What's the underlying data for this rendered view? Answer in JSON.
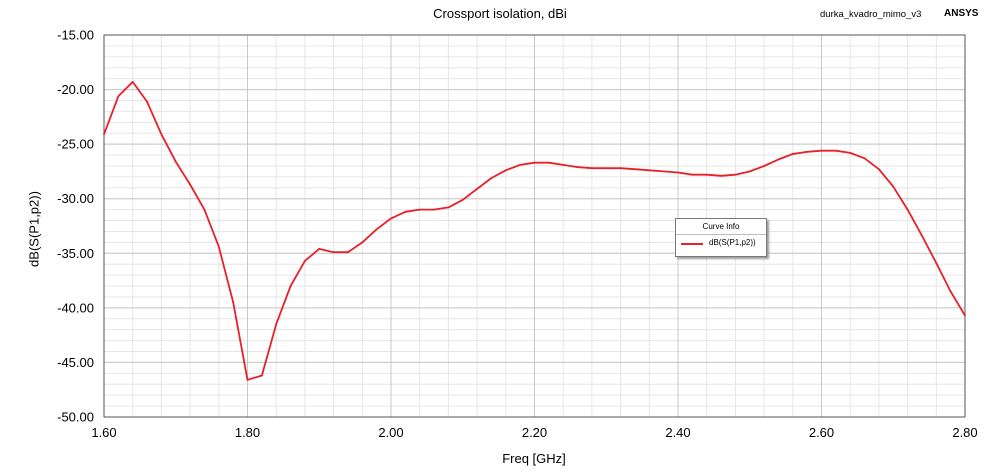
{
  "header": {
    "project_name": "durka_kvadro_mimo_v3",
    "brand": "ANSYS"
  },
  "legend": {
    "title": "Curve Info"
  },
  "chart_data": {
    "type": "line",
    "title": "Crossport isolation, dBi",
    "xlabel": "Freq [GHz]",
    "ylabel": "dB(S(P1,p2))",
    "xlim": [
      1.6,
      2.8
    ],
    "ylim": [
      -50,
      -15
    ],
    "x_ticks": [
      "1.60",
      "1.80",
      "2.00",
      "2.20",
      "2.40",
      "2.60",
      "2.80"
    ],
    "y_ticks": [
      "-15.00",
      "-20.00",
      "-25.00",
      "-30.00",
      "-35.00",
      "-40.00",
      "-45.00",
      "-50.00"
    ],
    "grid": true,
    "legend_position": "center-right",
    "colors": {
      "series": "#e8202a",
      "grid_major": "#c8c8c8",
      "grid_minor": "#e6e6e6"
    },
    "series": [
      {
        "name": "dB(S(P1,p2))",
        "x": [
          1.6,
          1.62,
          1.64,
          1.66,
          1.68,
          1.7,
          1.72,
          1.74,
          1.76,
          1.78,
          1.8,
          1.82,
          1.84,
          1.86,
          1.88,
          1.9,
          1.92,
          1.94,
          1.96,
          1.98,
          2.0,
          2.02,
          2.04,
          2.06,
          2.08,
          2.1,
          2.12,
          2.14,
          2.16,
          2.18,
          2.2,
          2.22,
          2.24,
          2.26,
          2.28,
          2.3,
          2.32,
          2.34,
          2.36,
          2.38,
          2.4,
          2.42,
          2.44,
          2.46,
          2.48,
          2.5,
          2.52,
          2.54,
          2.56,
          2.58,
          2.6,
          2.62,
          2.64,
          2.66,
          2.68,
          2.7,
          2.72,
          2.74,
          2.76,
          2.78,
          2.8
        ],
        "values": [
          -24.1,
          -20.6,
          -19.3,
          -21.1,
          -24.1,
          -26.6,
          -28.7,
          -31.0,
          -34.4,
          -39.5,
          -46.6,
          -46.2,
          -41.5,
          -38.0,
          -35.7,
          -34.6,
          -34.9,
          -34.9,
          -34.0,
          -32.8,
          -31.8,
          -31.2,
          -31.0,
          -31.0,
          -30.8,
          -30.1,
          -29.1,
          -28.1,
          -27.4,
          -26.9,
          -26.7,
          -26.7,
          -26.9,
          -27.1,
          -27.2,
          -27.2,
          -27.2,
          -27.3,
          -27.4,
          -27.5,
          -27.6,
          -27.8,
          -27.8,
          -27.9,
          -27.8,
          -27.5,
          -27.0,
          -26.4,
          -25.9,
          -25.7,
          -25.6,
          -25.6,
          -25.8,
          -26.3,
          -27.3,
          -28.9,
          -31.0,
          -33.4,
          -35.9,
          -38.5,
          -40.7
        ]
      }
    ]
  }
}
